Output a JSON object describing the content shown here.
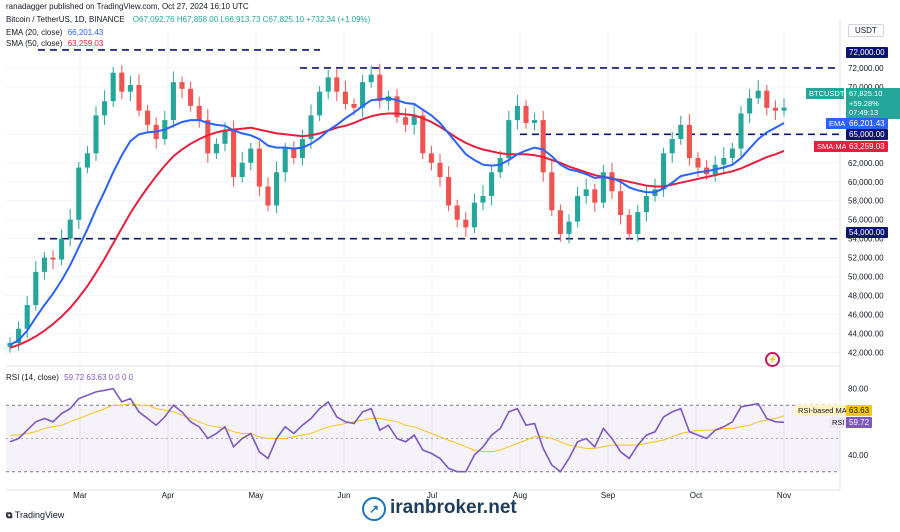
{
  "header": {
    "published": "ranadagger published on TradingView.com, Oct 27, 2024 16:10 UTC",
    "symbol": "Bitcoin / TetherUS, 1D, BINANCE",
    "ohlc": "O67,092.76 H67,858.00 L66,913.73 C67,825.10 +732.34 (+1.09%)",
    "ema_label": "EMA (20, close)",
    "ema_value": "66,201.43",
    "sma_label": "SMA (50, close)",
    "sma_value": "63,259.03",
    "rsi_label": "RSI (14, close)",
    "rsi_values": "59.72  63.63  0  0  0  0",
    "currency": "USDT"
  },
  "colors": {
    "up": "#26a69a",
    "down": "#ef5350",
    "ema": "#2962ff",
    "sma": "#e91e3c",
    "rsi": "#7e57c2",
    "rsi_ma": "#f5c518",
    "grid": "#f0f3fa",
    "level": "#0b1470"
  },
  "price_labels": {
    "symbol_tag": "BTCUSDT",
    "last": "67,825.10",
    "change": "+59.28%",
    "countdown": "07:49:13",
    "ema_tag": "EMA",
    "ema_value": "66,201.43",
    "sma_tag": "SMA:MA",
    "sma_value": "63,259.03",
    "level_72": "72,000.00",
    "level_65": "65,000.00",
    "level_54": "54,000.00"
  },
  "rsi_labels": {
    "ma_tag": "RSI-based MA",
    "ma_value": "63.63",
    "rsi_tag": "RSI",
    "rsi_value": "59.72"
  },
  "footer": {
    "brand": "TradingView",
    "watermark": "iranbroker.net"
  },
  "chart_data": {
    "type": "candlestick",
    "title": "Bitcoin / TetherUS, 1D, BINANCE",
    "price_axis_ticks": [
      "42,000.00",
      "44,000.00",
      "46,000.00",
      "48,000.00",
      "50,000.00",
      "52,000.00",
      "54,000.00",
      "56,000.00",
      "58,000.00",
      "60,000.00",
      "62,000.00",
      "65,000.00",
      "70,000.00",
      "72,000.00"
    ],
    "ylim": [
      41000,
      76000
    ],
    "x_ticks": [
      "Mar",
      "Apr",
      "May",
      "Jun",
      "Jul",
      "Aug",
      "Sep",
      "Oct",
      "Nov"
    ],
    "horizontal_levels": [
      72000,
      65000,
      54000
    ],
    "series": [
      {
        "name": "BTCUSDT",
        "values": [
          43000,
          44500,
          47000,
          50500,
          52000,
          51800,
          54000,
          56000,
          61500,
          63000,
          67000,
          68500,
          71500,
          69500,
          70200,
          67500,
          66000,
          64500,
          66500,
          70500,
          69800,
          68000,
          66500,
          63000,
          64000,
          65500,
          60500,
          62000,
          63500,
          59500,
          57500,
          61000,
          63500,
          62500,
          64500,
          67000,
          69500,
          71000,
          69500,
          68200,
          67800,
          70500,
          71300,
          68500,
          69000,
          66800,
          66000,
          67000,
          63000,
          62000,
          60500,
          57500,
          56000,
          55200,
          57800,
          58500,
          61000,
          62500,
          66500,
          68000,
          66200,
          66500,
          61000,
          57000,
          54500,
          55800,
          58500,
          59200,
          57800,
          61000,
          59000,
          56500,
          54500,
          56800,
          58500,
          59200,
          63000,
          64500,
          66000,
          62500,
          61500,
          60800,
          61800,
          62500,
          63500,
          67200,
          68800,
          69600,
          67800,
          67500,
          67825
        ]
      },
      {
        "name": "EMA (20, close)",
        "values": [
          42800,
          43300,
          44300,
          45700,
          47000,
          48200,
          49600,
          51200,
          53100,
          55000,
          57100,
          59000,
          61000,
          62800,
          64300,
          65000,
          65200,
          65300,
          65500,
          65900,
          66300,
          66500,
          66500,
          66200,
          66000,
          65900,
          65400,
          65100,
          64900,
          64500,
          63800,
          63600,
          63600,
          63500,
          63600,
          64000,
          64600,
          65400,
          66000,
          66700,
          67300,
          68000,
          68600,
          68700,
          68800,
          68600,
          68300,
          68200,
          67600,
          67000,
          66200,
          65100,
          64000,
          62900,
          62300,
          61800,
          61700,
          61800,
          62300,
          62900,
          63300,
          63600,
          63400,
          62700,
          61800,
          61300,
          61100,
          60800,
          60400,
          60500,
          60400,
          60000,
          59400,
          59100,
          58900,
          58900,
          59300,
          59900,
          60600,
          60800,
          61000,
          61100,
          61300,
          61500,
          61800,
          62500,
          63500,
          64500,
          65200,
          65700,
          66201
        ]
      },
      {
        "name": "SMA (50, close)",
        "values": [
          42500,
          42800,
          43200,
          43700,
          44300,
          45000,
          45800,
          46700,
          47800,
          49000,
          50400,
          51900,
          53500,
          55100,
          56700,
          58100,
          59400,
          60600,
          61700,
          62700,
          63400,
          64000,
          64500,
          64900,
          65200,
          65400,
          65500,
          65600,
          65700,
          65500,
          65300,
          65100,
          65000,
          64900,
          64800,
          64900,
          65100,
          65400,
          65700,
          65900,
          66200,
          66600,
          66900,
          67100,
          67200,
          67200,
          67100,
          67000,
          66700,
          66300,
          65800,
          65200,
          64600,
          64100,
          63700,
          63400,
          63200,
          63000,
          62900,
          62900,
          62900,
          62800,
          62600,
          62300,
          62000,
          61600,
          61300,
          61000,
          60700,
          60500,
          60300,
          60200,
          60000,
          59800,
          59600,
          59500,
          59500,
          59700,
          59900,
          60100,
          60300,
          60500,
          60700,
          60900,
          61100,
          61400,
          61800,
          62200,
          62600,
          62900,
          63259
        ]
      }
    ],
    "rsi": {
      "name": "RSI (14, close)",
      "ticks": [
        "80.00",
        "40.00"
      ],
      "ylim": [
        25,
        90
      ],
      "series": [
        {
          "name": "RSI",
          "values": [
            48,
            50,
            55,
            60,
            62,
            60,
            65,
            68,
            74,
            76,
            78,
            79,
            80,
            72,
            74,
            66,
            62,
            58,
            63,
            70,
            66,
            60,
            57,
            50,
            53,
            57,
            45,
            50,
            53,
            42,
            38,
            50,
            57,
            53,
            58,
            62,
            68,
            72,
            63,
            60,
            59,
            66,
            68,
            55,
            58,
            50,
            48,
            52,
            43,
            41,
            38,
            32,
            30,
            30,
            40,
            45,
            52,
            56,
            66,
            68,
            58,
            59,
            44,
            34,
            30,
            38,
            48,
            50,
            45,
            56,
            50,
            42,
            38,
            46,
            52,
            54,
            63,
            66,
            68,
            54,
            52,
            50,
            55,
            57,
            60,
            69,
            70,
            71,
            62,
            60,
            59.72
          ]
        },
        {
          "name": "RSI-based MA",
          "values": [
            52,
            52,
            53,
            54,
            56,
            57,
            58,
            60,
            62,
            64,
            66,
            68,
            70,
            70,
            71,
            70,
            70,
            68,
            67,
            66,
            64,
            62,
            60,
            58,
            57,
            56,
            54,
            53,
            53,
            51,
            50,
            50,
            50,
            51,
            52,
            53,
            55,
            57,
            58,
            59,
            60,
            61,
            62,
            62,
            61,
            60,
            58,
            57,
            55,
            53,
            51,
            49,
            47,
            45,
            43,
            42,
            42,
            43,
            45,
            47,
            49,
            51,
            51,
            50,
            48,
            46,
            45,
            44,
            44,
            45,
            46,
            46,
            46,
            46,
            47,
            48,
            49,
            51,
            53,
            54,
            55,
            55,
            55,
            56,
            56,
            57,
            58,
            60,
            61,
            62,
            63.63
          ]
        }
      ]
    }
  }
}
